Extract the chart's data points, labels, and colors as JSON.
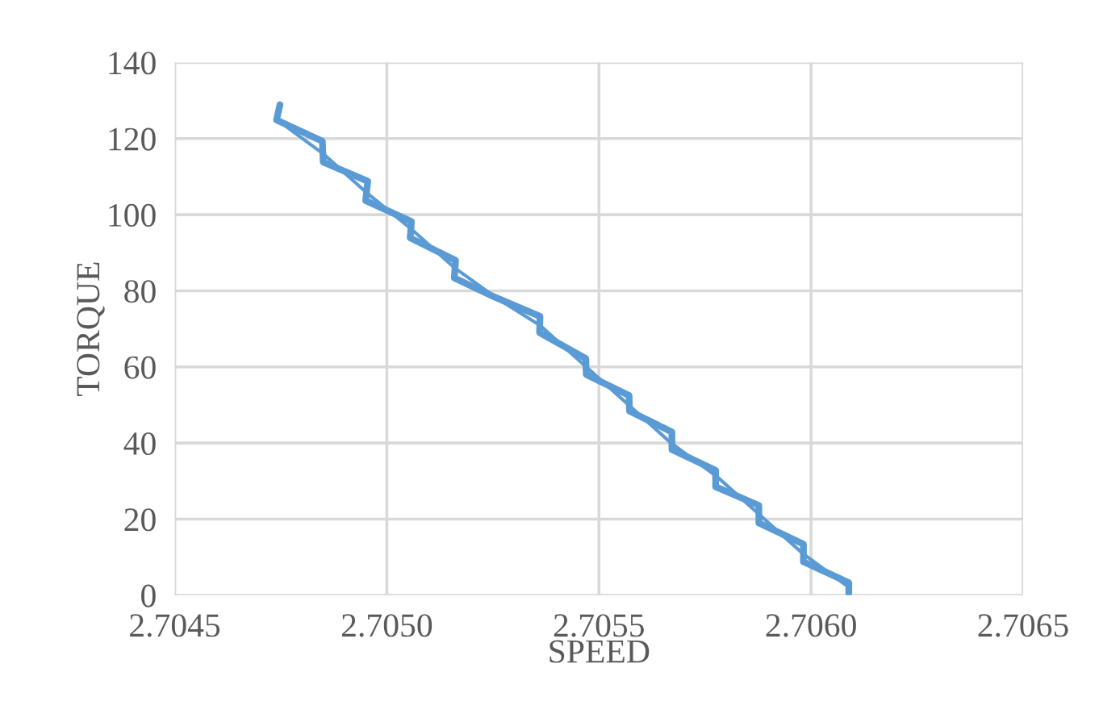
{
  "chart_data": {
    "type": "line",
    "xlabel": "SPEED",
    "ylabel": "TORQUE",
    "xlim": [
      2.7045,
      2.7065
    ],
    "xticks": [
      {
        "value": 2.7045,
        "label": "2.7045"
      },
      {
        "value": 2.705,
        "label": "2.7050"
      },
      {
        "value": 2.7055,
        "label": "2.7055"
      },
      {
        "value": 2.706,
        "label": "2.7060"
      },
      {
        "value": 2.7065,
        "label": "2.7065"
      }
    ],
    "ylim": [
      0,
      140
    ],
    "yticks": [
      0,
      20,
      40,
      60,
      80,
      100,
      120,
      140
    ],
    "grid": true,
    "marker": "none",
    "line_style": "solid",
    "series": [
      {
        "color": "#5b9bd5",
        "x": [
          2.704748,
          2.70474,
          2.704848,
          2.70485,
          2.704955,
          2.70495,
          2.705058,
          2.705055,
          2.705162,
          2.705159,
          2.705245,
          2.705361,
          2.70536,
          2.705469,
          2.70547,
          2.705571,
          2.705572,
          2.705672,
          2.705672,
          2.705775,
          2.705775,
          2.705877,
          2.705877,
          2.705982,
          2.705982,
          2.706089,
          2.706089
        ],
        "values": [
          128.9,
          124.9,
          119.3,
          113.8,
          108.8,
          103.7,
          98.2,
          93.9,
          88,
          83.4,
          78.8,
          73.3,
          69,
          62.2,
          58,
          52.5,
          48.4,
          42.9,
          38.3,
          32.8,
          28.5,
          23.6,
          19,
          13.4,
          8.8,
          3.3,
          0.5
        ]
      },
      {
        "color": "#5b9bd5",
        "x": [
          2.70474,
          2.70485,
          2.70495,
          2.70506,
          2.70516,
          2.70526,
          2.70536,
          2.70547,
          2.70557,
          2.70567,
          2.70578,
          2.70588,
          2.70598,
          2.70609
        ],
        "values": [
          125,
          116,
          106,
          96,
          86,
          78,
          71,
          60,
          50,
          40,
          31,
          21,
          11,
          2
        ]
      }
    ]
  }
}
